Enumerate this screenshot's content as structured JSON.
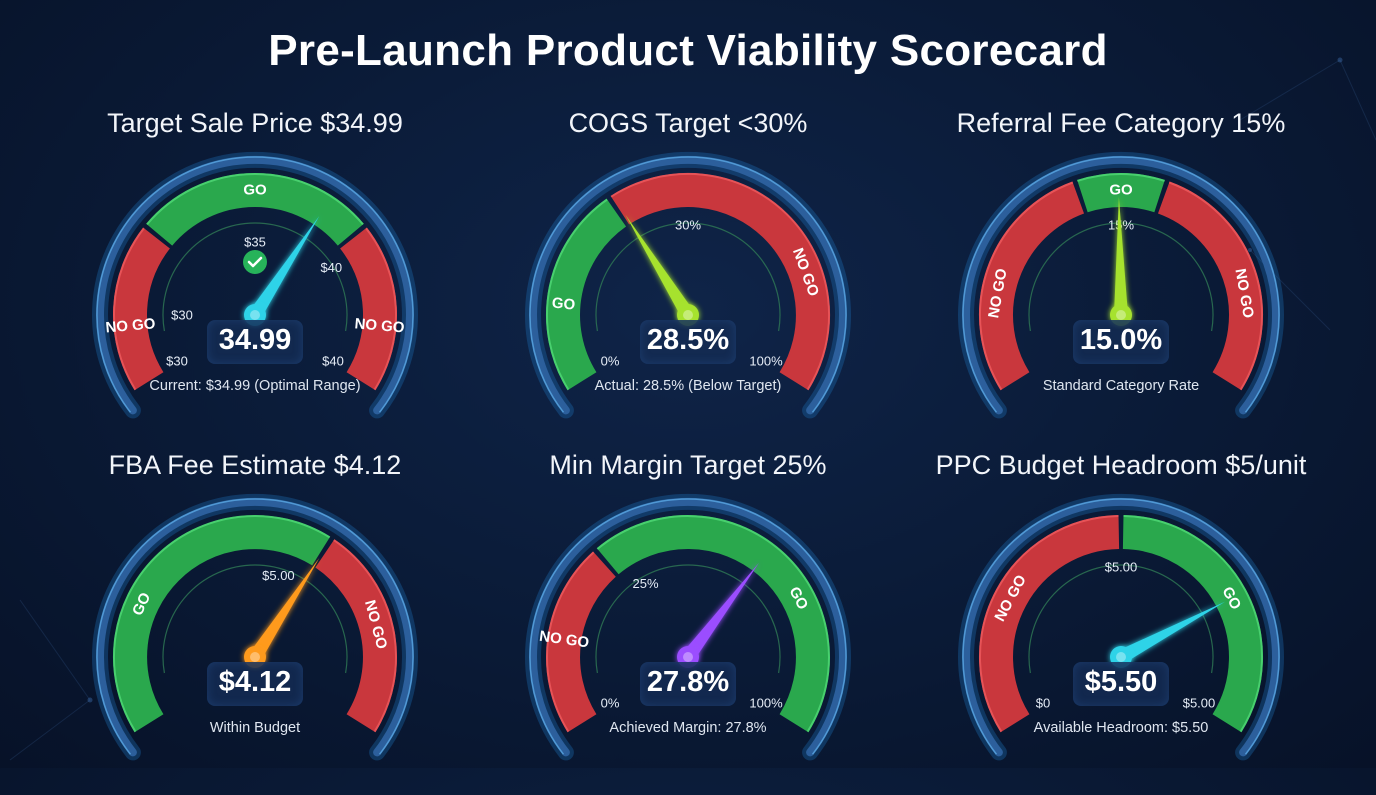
{
  "page_title": "Pre-Launch Product Viability Scorecard",
  "chart_data": [
    {
      "type": "gauge",
      "title": "Target Sale Price $34.99",
      "value": 34.99,
      "value_label": "34.99",
      "caption": "Current: $34.99 (Optimal Range)",
      "needle_color": "#2fd3e8",
      "show_check": true,
      "zones": [
        {
          "label": "NO GO",
          "color": "red"
        },
        {
          "label": "GO",
          "color": "green"
        },
        {
          "label": "NO GO",
          "color": "red"
        }
      ],
      "tick_labels": [
        "$30",
        "$35",
        "$40"
      ],
      "range_labels": [
        "$30",
        "$40"
      ]
    },
    {
      "type": "gauge",
      "title": "COGS Target <30%",
      "value": 28.5,
      "value_label": "28.5%",
      "caption": "Actual: 28.5% (Below Target)",
      "needle_color": "#a6e22e",
      "zones": [
        {
          "label": "GO",
          "color": "green"
        },
        {
          "label": "NO GO",
          "color": "red"
        }
      ],
      "tick_labels": [
        "30%"
      ],
      "range_labels": [
        "0%",
        "100%"
      ]
    },
    {
      "type": "gauge",
      "title": "Referral Fee Category 15%",
      "value": 15.0,
      "value_label": "15.0%",
      "caption": "Standard Category Rate",
      "needle_color": "#a6e22e",
      "zones": [
        {
          "label": "NO GO",
          "color": "red"
        },
        {
          "label": "GO",
          "color": "green"
        },
        {
          "label": "NO GO",
          "color": "red"
        }
      ],
      "tick_labels": [
        "15%"
      ],
      "range_labels": []
    },
    {
      "type": "gauge",
      "title": "FBA Fee Estimate $4.12",
      "value": 4.12,
      "value_label": "$4.12",
      "caption": "Within Budget",
      "needle_color": "#ff9a1f",
      "zones": [
        {
          "label": "GO",
          "color": "green"
        },
        {
          "label": "NO GO",
          "color": "red"
        }
      ],
      "tick_labels": [
        "$5.00"
      ],
      "range_labels": []
    },
    {
      "type": "gauge",
      "title": "Min Margin Target 25%",
      "value": 27.8,
      "value_label": "27.8%",
      "caption": "Achieved Margin: 27.8%",
      "needle_color": "#9b4dff",
      "zones": [
        {
          "label": "NO GO",
          "color": "red"
        },
        {
          "label": "GO",
          "color": "green"
        }
      ],
      "tick_labels": [
        "25%"
      ],
      "range_labels": [
        "0%",
        "100%"
      ]
    },
    {
      "type": "gauge",
      "title": "PPC Budget Headroom $5/unit",
      "value": 5.5,
      "value_label": "$5.50",
      "caption": "Available Headroom: $5.50",
      "needle_color": "#2fd3e8",
      "zones": [
        {
          "label": "NO GO",
          "color": "red"
        },
        {
          "label": "GO",
          "color": "green"
        }
      ],
      "tick_labels": [
        "$5.00"
      ],
      "range_labels": [
        "$0",
        "$5.00"
      ]
    }
  ]
}
